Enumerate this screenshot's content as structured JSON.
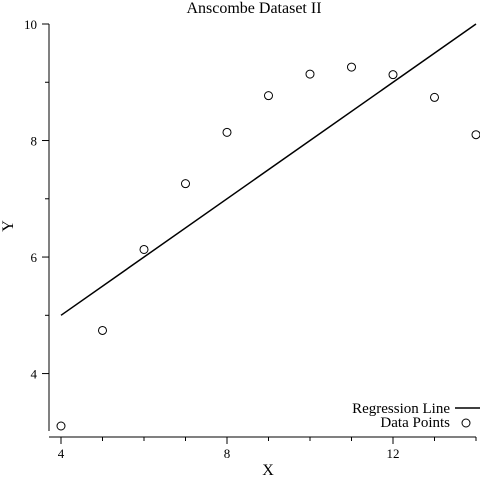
{
  "chart_data": {
    "type": "scatter",
    "title": "Anscombe Dataset II",
    "xlabel": "X",
    "ylabel": "Y",
    "xlim": [
      4,
      14
    ],
    "ylim": [
      3.1,
      10
    ],
    "x_ticks_major": [
      4,
      8,
      12
    ],
    "x_ticks_minor": [
      5,
      6,
      7,
      9,
      10,
      11,
      13,
      14
    ],
    "y_ticks_major": [
      4,
      6,
      8,
      10
    ],
    "y_ticks_minor": [
      5,
      7,
      9
    ],
    "grid": false,
    "legend_position": "bottom-right",
    "series": [
      {
        "name": "Data Points",
        "kind": "scatter",
        "x": [
          4,
          5,
          6,
          7,
          8,
          9,
          10,
          11,
          12,
          13,
          14
        ],
        "y": [
          3.1,
          4.74,
          6.13,
          7.26,
          8.14,
          8.77,
          9.14,
          9.26,
          9.13,
          8.74,
          8.1
        ]
      },
      {
        "name": "Regression Line",
        "kind": "line",
        "x": [
          4,
          14
        ],
        "y": [
          5.0,
          10.0
        ]
      }
    ]
  },
  "legend": {
    "line_label": "Regression Line",
    "points_label": "Data Points"
  }
}
